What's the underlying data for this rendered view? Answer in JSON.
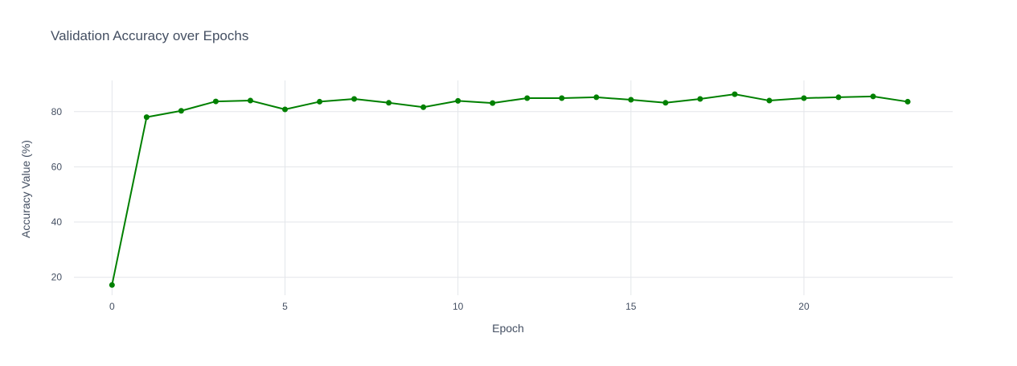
{
  "chart_data": {
    "type": "line",
    "title": "Validation Accuracy over Epochs",
    "xlabel": "Epoch",
    "ylabel": "Accuracy Value (%)",
    "x": [
      0,
      1,
      2,
      3,
      4,
      5,
      6,
      7,
      8,
      9,
      10,
      11,
      12,
      13,
      14,
      15,
      16,
      17,
      18,
      19,
      20,
      21,
      22,
      23
    ],
    "series": [
      {
        "values": [
          17.2,
          78.0,
          80.3,
          83.7,
          84.0,
          80.8,
          83.6,
          84.6,
          83.2,
          81.6,
          83.9,
          83.1,
          84.9,
          84.9,
          85.2,
          84.3,
          83.2,
          84.6,
          86.3,
          84.0,
          84.9,
          85.2,
          85.5,
          83.6
        ],
        "color": "#008000"
      }
    ],
    "xticks": [
      0,
      5,
      10,
      15,
      20
    ],
    "yticks": [
      20,
      40,
      60,
      80
    ],
    "xlim": [
      -1.1,
      24.3
    ],
    "ylim": [
      13.5,
      91.3
    ],
    "grid": true,
    "legend": "none"
  }
}
